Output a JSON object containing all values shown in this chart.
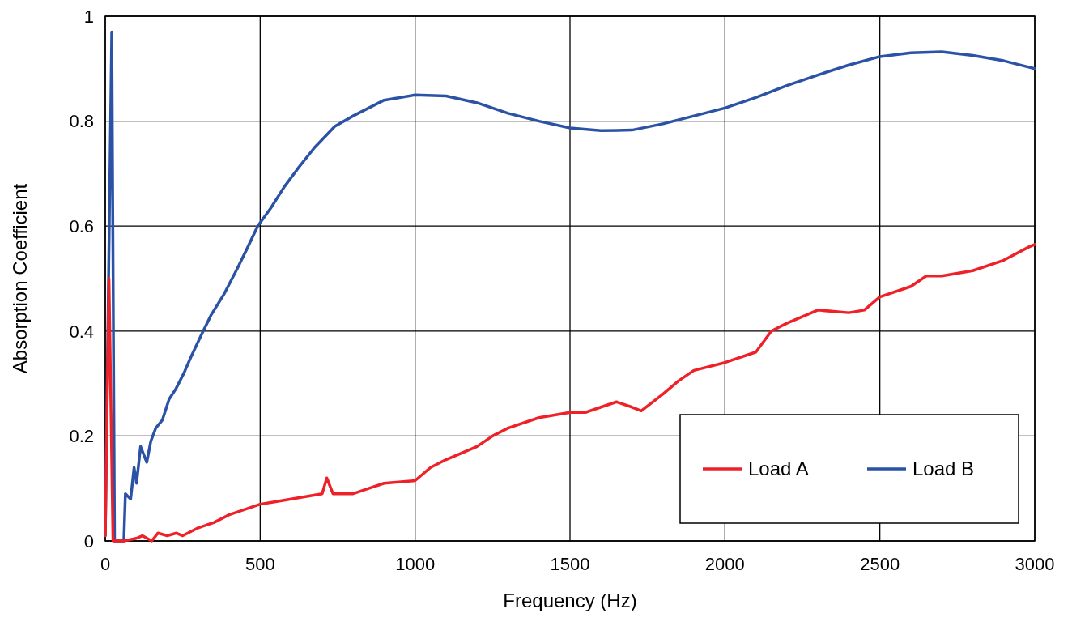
{
  "chart_data": {
    "type": "line",
    "xlabel": "Frequency (Hz)",
    "ylabel": "Absorption Coefficient",
    "xlim": [
      0,
      3000
    ],
    "ylim": [
      0,
      1
    ],
    "xticks": [
      0,
      500,
      1000,
      1500,
      2000,
      2500,
      3000
    ],
    "yticks": [
      0,
      {
        "value": 0.2,
        "label": "0.2"
      },
      {
        "value": 0.4,
        "label": "0.4"
      },
      {
        "value": 0.6,
        "label": "0.6"
      },
      {
        "value": 0.8,
        "label": "0.8"
      },
      1
    ],
    "grid": true,
    "legend": "bottom right",
    "marker": "none",
    "line_style": "solid",
    "series": [
      {
        "name": "Load A",
        "color": "#ee2129",
        "x": [
          0,
          12,
          25,
          60,
          100,
          120,
          150,
          170,
          200,
          230,
          250,
          300,
          350,
          400,
          450,
          500,
          550,
          600,
          650,
          700,
          715,
          735,
          800,
          850,
          900,
          1000,
          1050,
          1100,
          1200,
          1250,
          1300,
          1400,
          1450,
          1500,
          1550,
          1600,
          1650,
          1700,
          1730,
          1800,
          1850,
          1900,
          2000,
          2100,
          2150,
          2200,
          2300,
          2400,
          2450,
          2500,
          2600,
          2650,
          2700,
          2800,
          2900,
          2980,
          3000
        ],
        "values": [
          0.01,
          0.5,
          0,
          0,
          0.005,
          0.01,
          0,
          0.015,
          0.01,
          0.015,
          0.01,
          0.025,
          0.035,
          0.05,
          0.06,
          0.07,
          0.075,
          0.08,
          0.085,
          0.09,
          0.12,
          0.09,
          0.09,
          0.1,
          0.11,
          0.115,
          0.14,
          0.155,
          0.18,
          0.2,
          0.215,
          0.235,
          0.24,
          0.245,
          0.245,
          0.255,
          0.265,
          0.255,
          0.248,
          0.28,
          0.305,
          0.325,
          0.34,
          0.36,
          0.4,
          0.415,
          0.44,
          0.435,
          0.44,
          0.465,
          0.485,
          0.505,
          0.505,
          0.515,
          0.535,
          0.56,
          0.565
        ]
      },
      {
        "name": "Load B",
        "color": "#2b52a5",
        "x": [
          0,
          21,
          30,
          45,
          60,
          65,
          82,
          93,
          101,
          114,
          134,
          147,
          163,
          184,
          206,
          228,
          254,
          276,
          308,
          341,
          383,
          427,
          460,
          492,
          535,
          578,
          622,
          676,
          741,
          800,
          900,
          1000,
          1100,
          1200,
          1300,
          1400,
          1500,
          1600,
          1700,
          1800,
          1900,
          2000,
          2100,
          2200,
          2300,
          2400,
          2500,
          2600,
          2700,
          2800,
          2900,
          3000
        ],
        "values": [
          0.01,
          0.97,
          0,
          0,
          0,
          0.09,
          0.08,
          0.14,
          0.11,
          0.18,
          0.15,
          0.19,
          0.215,
          0.23,
          0.27,
          0.29,
          0.32,
          0.35,
          0.39,
          0.43,
          0.47,
          0.52,
          0.56,
          0.6,
          0.635,
          0.675,
          0.71,
          0.75,
          0.79,
          0.81,
          0.84,
          0.85,
          0.848,
          0.835,
          0.815,
          0.8,
          0.787,
          0.782,
          0.783,
          0.795,
          0.81,
          0.825,
          0.845,
          0.868,
          0.888,
          0.907,
          0.923,
          0.93,
          0.932,
          0.925,
          0.915,
          0.9
        ]
      }
    ]
  }
}
